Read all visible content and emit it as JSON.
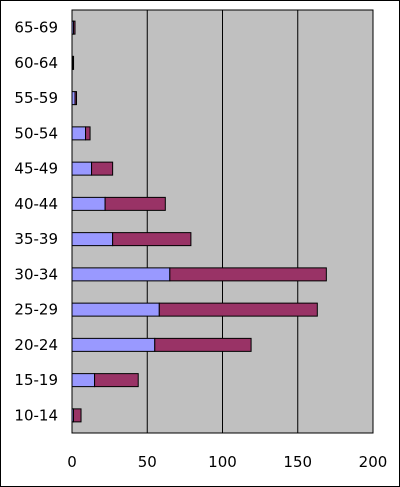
{
  "chart_data": {
    "type": "bar",
    "orientation": "horizontal",
    "stacked": true,
    "categories": [
      "10-14",
      "15-19",
      "20-24",
      "25-29",
      "30-34",
      "35-39",
      "40-44",
      "45-49",
      "50-54",
      "55-59",
      "60-64",
      "65-69"
    ],
    "series": [
      {
        "values": [
          1,
          15,
          55,
          58,
          65,
          27,
          22,
          13,
          9,
          2,
          0.5,
          1
        ],
        "color": "#9999ff"
      },
      {
        "values": [
          5,
          29,
          64,
          105,
          104,
          52,
          40,
          14,
          3,
          1,
          0.5,
          1
        ],
        "color": "#993366"
      }
    ],
    "xlim": [
      0,
      200
    ],
    "x_ticks": [
      "0",
      "50",
      "100",
      "150",
      "200"
    ],
    "grid": "vertical",
    "plot_background": "#c0c0c0",
    "legend": "none"
  }
}
